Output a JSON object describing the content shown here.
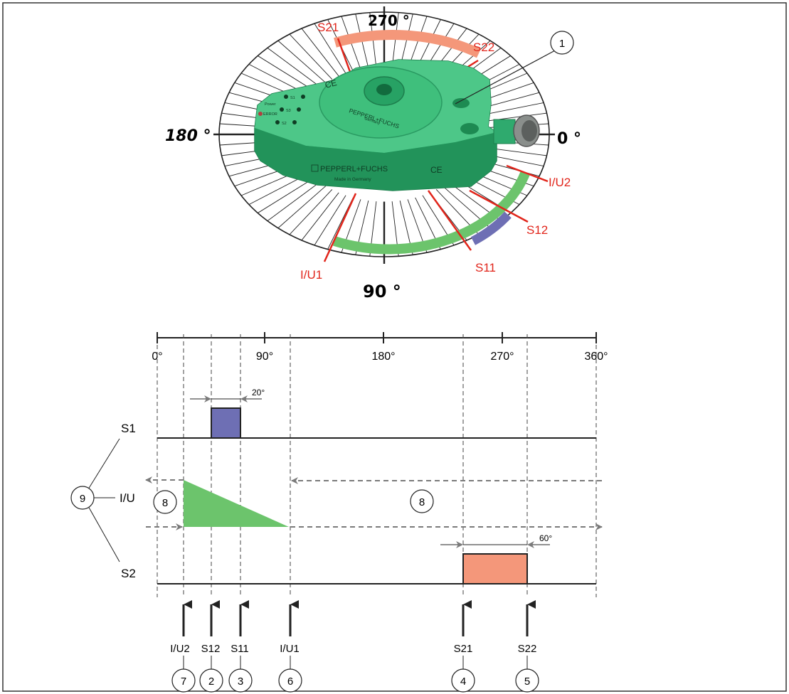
{
  "top": {
    "angles": {
      "a270": "270 °",
      "a180": "180 °",
      "a0": "0 °",
      "a90": "90 °"
    },
    "labels": {
      "S21": "S21",
      "S22": "S22",
      "IU2": "I/U2",
      "S12": "S12",
      "S11": "S11",
      "IU1": "I/U1"
    },
    "callout_1": "1",
    "device": {
      "brand_top": "PEPPERL+FUCHS",
      "brand_top_sub": "Germany",
      "brand_front": "PEPPERL+FUCHS",
      "made_in": "Made in Germany",
      "ce": "CE",
      "led_power": "Power",
      "led_error": "ERROR",
      "led_s1": "S1",
      "led_s3": "S3",
      "led_s2": "S2"
    },
    "colors": {
      "switch2": "#F4977A",
      "switch1": "#6E6FB4",
      "analog": "#6CC46C",
      "marker": "#E1251B",
      "housing": "#2DAA6C"
    }
  },
  "timeline": {
    "ticks": [
      "0°",
      "90°",
      "180°",
      "270°",
      "360°"
    ],
    "width_s1": "20°",
    "width_s2": "60°",
    "rows": {
      "s1": "S1",
      "iu": "I/U",
      "s2": "S2"
    },
    "callout_9": "9",
    "callout_8a": "8",
    "callout_8b": "8",
    "points": [
      {
        "label": "I/U2",
        "num": "7"
      },
      {
        "label": "S12",
        "num": "2"
      },
      {
        "label": "S11",
        "num": "3"
      },
      {
        "label": "I/U1",
        "num": "6"
      },
      {
        "label": "S21",
        "num": "4"
      },
      {
        "label": "S22",
        "num": "5"
      }
    ]
  }
}
